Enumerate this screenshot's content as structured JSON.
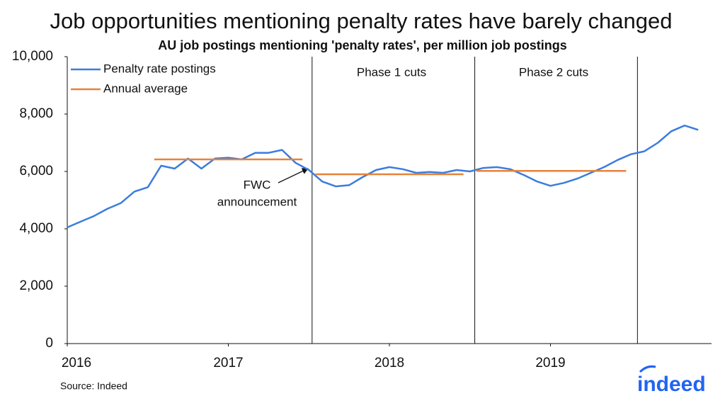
{
  "chart_data": {
    "type": "line",
    "title": "Job opportunities mentioning penalty rates have barely changed",
    "subtitle": "AU job postings mentioning 'penalty rates', per million job postings",
    "xlim": [
      2016,
      2020
    ],
    "xticks": [
      2016,
      2017,
      2018,
      2019
    ],
    "ylim": [
      0,
      10000
    ],
    "yticks": [
      0,
      {
        "value": 2000,
        "label": "2,000"
      },
      {
        "value": 4000,
        "label": "4,000"
      },
      {
        "value": 6000,
        "label": "6,000"
      },
      {
        "value": 8000,
        "label": "8,000"
      },
      {
        "value": 10000,
        "label": "10,000"
      }
    ],
    "grid": false,
    "legend": "upper left",
    "series": [
      {
        "name": "Penalty rate postings",
        "color": "#3b7ddd",
        "x": [
          2016,
          2016.083,
          2016.167,
          2016.25,
          2016.333,
          2016.417,
          2016.5,
          2016.583,
          2016.667,
          2016.75,
          2016.833,
          2016.917,
          2017,
          2017.083,
          2017.167,
          2017.25,
          2017.333,
          2017.417,
          2017.5,
          2017.583,
          2017.667,
          2017.75,
          2017.833,
          2017.917,
          2018,
          2018.083,
          2018.167,
          2018.25,
          2018.333,
          2018.417,
          2018.5,
          2018.583,
          2018.667,
          2018.75,
          2018.833,
          2018.917,
          2019,
          2019.083,
          2019.167,
          2019.25,
          2019.333,
          2019.417,
          2019.5,
          2019.583,
          2019.667,
          2019.75,
          2019.833,
          2019.917
        ],
        "values": [
          4050,
          4250,
          4450,
          4700,
          4900,
          5300,
          5450,
          6200,
          6100,
          6450,
          6100,
          6450,
          6480,
          6420,
          6650,
          6650,
          6750,
          6300,
          6050,
          5650,
          5480,
          5520,
          5800,
          6050,
          6150,
          6080,
          5950,
          5980,
          5950,
          6050,
          6000,
          6120,
          6150,
          6080,
          5880,
          5650,
          5500,
          5600,
          5750,
          5950,
          6150,
          6400,
          6600,
          6700,
          7000,
          7400,
          7600,
          7450
        ]
      },
      {
        "name": "Annual average",
        "color": "#e8823a",
        "segments": [
          {
            "x": [
              2016.54,
              2017.46
            ],
            "value": 6420
          },
          {
            "x": [
              2017.54,
              2018.46
            ],
            "value": 5900
          },
          {
            "x": [
              2018.54,
              2019.47
            ],
            "value": 6020
          }
        ]
      }
    ],
    "vlines": [
      2017.52,
      2018.53,
      2019.54
    ],
    "annotations": {
      "phase1": "Phase 1 cuts",
      "phase2": "Phase 2 cuts",
      "fwc": [
        "FWC",
        "announcement"
      ]
    },
    "source": "Source: Indeed",
    "logo": "indeed"
  }
}
